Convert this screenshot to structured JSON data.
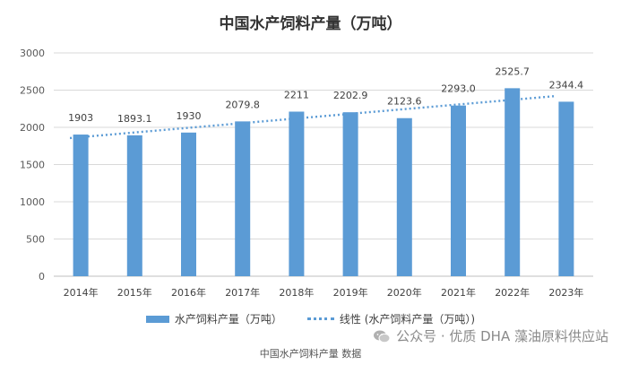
{
  "chart_data": {
    "type": "bar",
    "title": "中国水产饲料产量（万吨）",
    "categories": [
      "2014年",
      "2015年",
      "2016年",
      "2017年",
      "2018年",
      "2019年",
      "2020年",
      "2021年",
      "2022年",
      "2023年"
    ],
    "series": [
      {
        "name": "水产饲料产量（万吨）",
        "values": [
          1903,
          1893.1,
          1930,
          2079.8,
          2211,
          2202.9,
          2123.6,
          2293.0,
          2525.7,
          2344.4
        ],
        "labels": [
          "1903",
          "1893.1",
          "1930",
          "2079.8",
          "2211",
          "2202.9",
          "2123.6",
          "2293.0",
          "2525.7",
          "2344.4"
        ]
      }
    ],
    "trendline": {
      "name": "线性 (水产饲料产量（万吨）)",
      "type": "linear"
    },
    "ylim": [
      0,
      3000
    ],
    "yticks": [
      0,
      500,
      1000,
      1500,
      2000,
      2500,
      3000
    ],
    "grid": true,
    "legend": "bottom",
    "colors": {
      "bar": "#5B9BD5",
      "trend": "#5B9BD5"
    }
  },
  "caption": "中国水产饲料产量 数据",
  "watermark": "公众号 · 优质 DHA 藻油原料供应站",
  "icons": {
    "watermark": "wechat-icon"
  }
}
